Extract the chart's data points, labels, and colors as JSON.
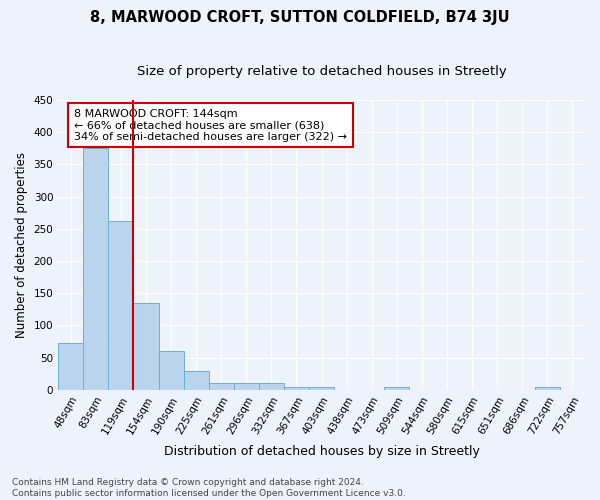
{
  "title": "8, MARWOOD CROFT, SUTTON COLDFIELD, B74 3JU",
  "subtitle": "Size of property relative to detached houses in Streetly",
  "xlabel": "Distribution of detached houses by size in Streetly",
  "ylabel": "Number of detached properties",
  "categories": [
    "48sqm",
    "83sqm",
    "119sqm",
    "154sqm",
    "190sqm",
    "225sqm",
    "261sqm",
    "296sqm",
    "332sqm",
    "367sqm",
    "403sqm",
    "438sqm",
    "473sqm",
    "509sqm",
    "544sqm",
    "580sqm",
    "615sqm",
    "651sqm",
    "686sqm",
    "722sqm",
    "757sqm"
  ],
  "values": [
    72,
    375,
    262,
    135,
    60,
    29,
    10,
    10,
    10,
    5,
    5,
    0,
    0,
    4,
    0,
    0,
    0,
    0,
    0,
    4,
    0
  ],
  "bar_color": "#bad4ed",
  "bar_edge_color": "#6aaed6",
  "vline_x": 2.5,
  "vline_color": "#cc0000",
  "annotation_text": "8 MARWOOD CROFT: 144sqm\n← 66% of detached houses are smaller (638)\n34% of semi-detached houses are larger (322) →",
  "annotation_box_color": "#ffffff",
  "annotation_box_edge": "#cc0000",
  "ylim": [
    0,
    450
  ],
  "yticks": [
    0,
    50,
    100,
    150,
    200,
    250,
    300,
    350,
    400,
    450
  ],
  "background_color": "#eef2fb",
  "grid_color": "#ffffff",
  "footnote": "Contains HM Land Registry data © Crown copyright and database right 2024.\nContains public sector information licensed under the Open Government Licence v3.0.",
  "title_fontsize": 10.5,
  "subtitle_fontsize": 9.5,
  "xlabel_fontsize": 9,
  "ylabel_fontsize": 8.5,
  "tick_fontsize": 7.5,
  "annotation_fontsize": 8,
  "footnote_fontsize": 6.5
}
